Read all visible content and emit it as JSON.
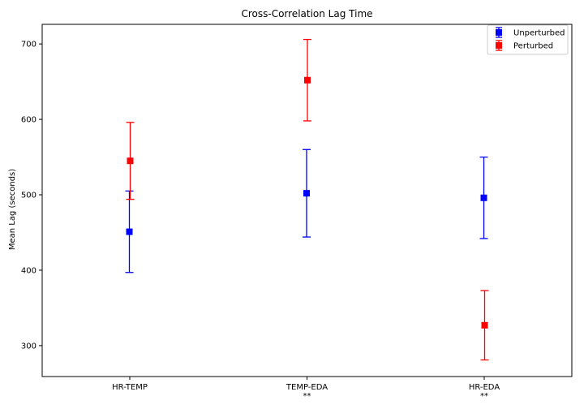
{
  "chart_data": {
    "type": "scatter",
    "title": "Cross-Correlation Lag Time",
    "xlabel": "",
    "ylabel": "Mean Lag (seconds)",
    "categories": [
      "HR-TEMP",
      "TEMP-EDA",
      "HR-EDA"
    ],
    "category_annotations": [
      "",
      "**",
      "**"
    ],
    "ylim": [
      259,
      726
    ],
    "yticks": [
      300,
      400,
      500,
      600,
      700
    ],
    "grid": false,
    "legend_position": "top-right",
    "series": [
      {
        "name": "Unperturbed",
        "color": "#0000ff",
        "marker": "square",
        "values": [
          451,
          502,
          496
        ],
        "errors": [
          54,
          58,
          54
        ]
      },
      {
        "name": "Perturbed",
        "color": "#ff0000",
        "marker": "square",
        "values": [
          545,
          652,
          327
        ],
        "errors": [
          51,
          54,
          46
        ]
      }
    ]
  }
}
